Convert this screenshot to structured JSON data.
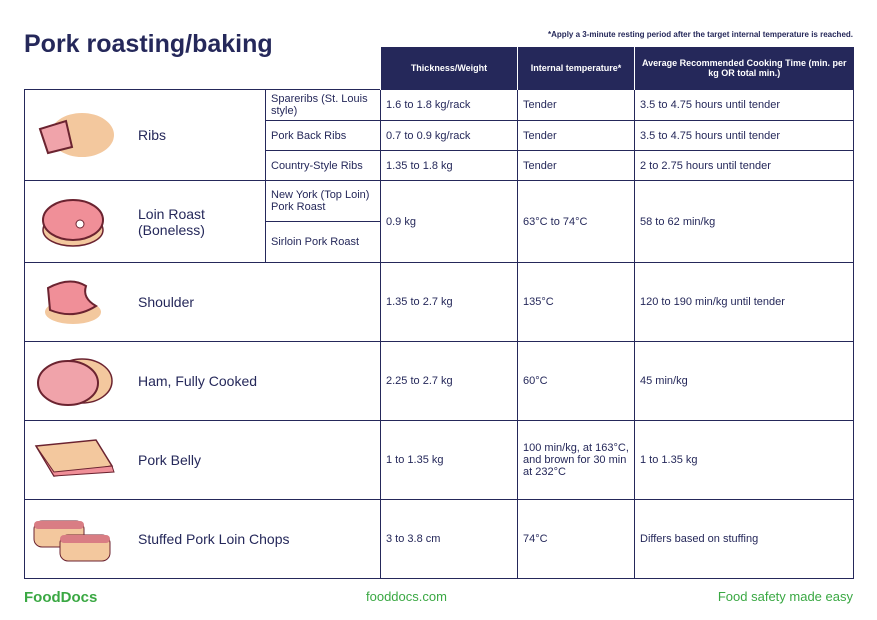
{
  "title": "Pork roasting/baking",
  "note": "*Apply a 3-minute resting period after the target internal temperature is reached.",
  "table": {
    "headers": [
      "Thickness/Weight",
      "Internal temperature*",
      "Average Recommended Cooking Time (min. per kg OR total min.)"
    ],
    "groups": [
      {
        "name": "Ribs",
        "cuts": [
          {
            "name": "Spareribs (St. Louis style)",
            "weight": "1.6 to 1.8 kg/rack",
            "temp": "Tender",
            "time": "3.5 to 4.75 hours until tender"
          },
          {
            "name": "Pork Back Ribs",
            "weight": "0.7 to 0.9 kg/rack",
            "temp": "Tender",
            "time": "3.5 to 4.75 hours until tender"
          },
          {
            "name": "Country-Style Ribs",
            "weight": "1.35 to 1.8 kg",
            "temp": "Tender",
            "time": "2 to 2.75 hours until tender"
          }
        ]
      },
      {
        "name": "Loin Roast (Boneless)",
        "cuts": [
          {
            "name": "New York (Top Loin) Pork Roast"
          },
          {
            "name": "Sirloin Pork Roast"
          }
        ],
        "weight": "0.9 kg",
        "temp": "63°C to 74°C",
        "time": "58 to 62 min/kg"
      },
      {
        "name": "Shoulder",
        "weight": "1.35 to 2.7 kg",
        "temp": "135°C",
        "time": "120 to 190 min/kg until tender"
      },
      {
        "name": "Ham, Fully Cooked",
        "weight": "2.25 to 2.7 kg",
        "temp": "60°C",
        "time": "45 min/kg"
      },
      {
        "name": "Pork Belly",
        "weight": "1 to 1.35 kg",
        "temp": "100 min/kg, at 163°C, and brown for 30 min at 232°C",
        "time": "1 to 1.35 kg"
      },
      {
        "name": "Stuffed Pork Loin Chops",
        "weight": "3 to 3.8 cm",
        "temp": "74°C",
        "time": "Differs based on stuffing"
      }
    ]
  },
  "footer": {
    "brand": "FoodDocs",
    "url": "fooddocs.com",
    "tagline": "Food safety made easy"
  }
}
